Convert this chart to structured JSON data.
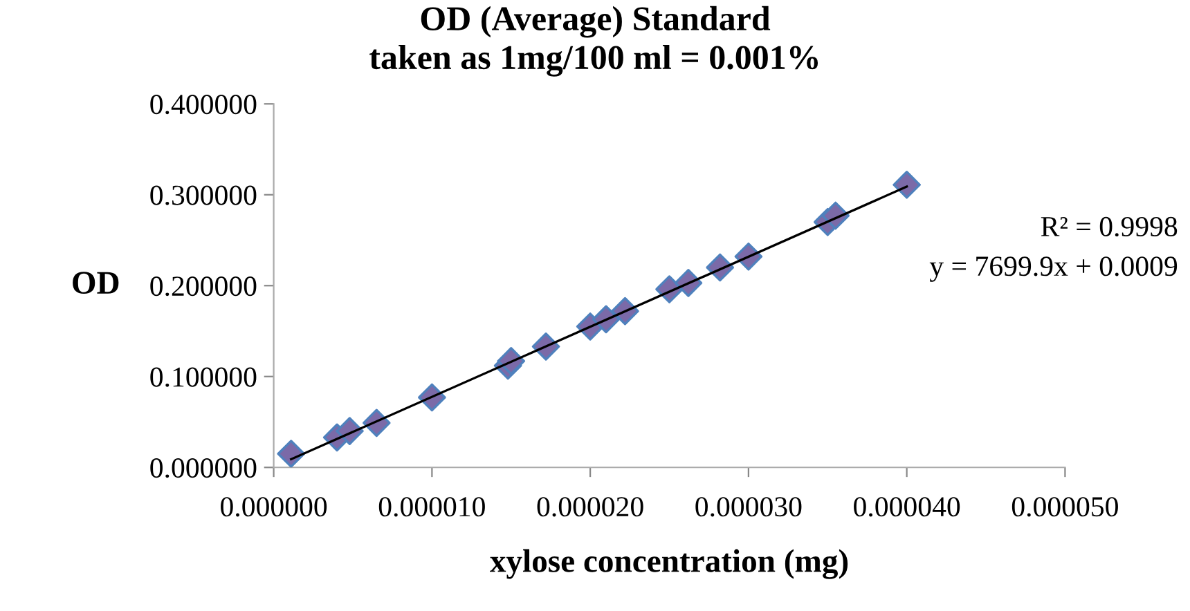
{
  "chart_data": {
    "type": "scatter",
    "title": "OD (Average) Standard\ntaken as 1mg/100 ml = 0.001%",
    "xlabel": "xylose concentration (mg)",
    "ylabel": "OD",
    "x": [
      1.1e-06,
      4e-06,
      4.8e-06,
      6.5e-06,
      1e-05,
      1.48e-05,
      1.5e-05,
      1.72e-05,
      2e-05,
      2.1e-05,
      2.22e-05,
      2.5e-05,
      2.62e-05,
      2.82e-05,
      3e-05,
      3.5e-05,
      3.55e-05,
      4e-05
    ],
    "series": [
      {
        "color": "#7b6aa8",
        "marker": "diamond",
        "values": [
          0.015,
          0.033,
          0.04,
          0.049,
          0.077,
          0.112,
          0.117,
          0.133,
          0.155,
          0.163,
          0.172,
          0.196,
          0.203,
          0.22,
          0.232,
          0.27,
          0.277,
          0.311
        ]
      },
      {
        "type": "line",
        "color": "#000000",
        "marker": "none",
        "x": [
          1.1e-06,
          4e-05
        ],
        "values": [
          0.009,
          0.309
        ]
      }
    ],
    "annotations": [
      "R² = 0.9998",
      "y = 7699.9x + 0.0009"
    ],
    "xlim": [
      0,
      5e-05
    ],
    "ylim": [
      0,
      0.4
    ],
    "xticks": [
      {
        "value": 0,
        "label": "0.000000"
      },
      {
        "value": 1e-05,
        "label": "0.000010"
      },
      {
        "value": 2e-05,
        "label": "0.000020"
      },
      {
        "value": 3e-05,
        "label": "0.000030"
      },
      {
        "value": 4e-05,
        "label": "0.000040"
      },
      {
        "value": 5e-05,
        "label": "0.000050"
      }
    ],
    "yticks": [
      {
        "value": 0,
        "label": "0.000000"
      },
      {
        "value": 0.1,
        "label": "0.100000"
      },
      {
        "value": 0.2,
        "label": "0.200000"
      },
      {
        "value": 0.3,
        "label": "0.300000"
      },
      {
        "value": 0.4,
        "label": "0.400000"
      }
    ],
    "grid": false,
    "legend": false
  }
}
